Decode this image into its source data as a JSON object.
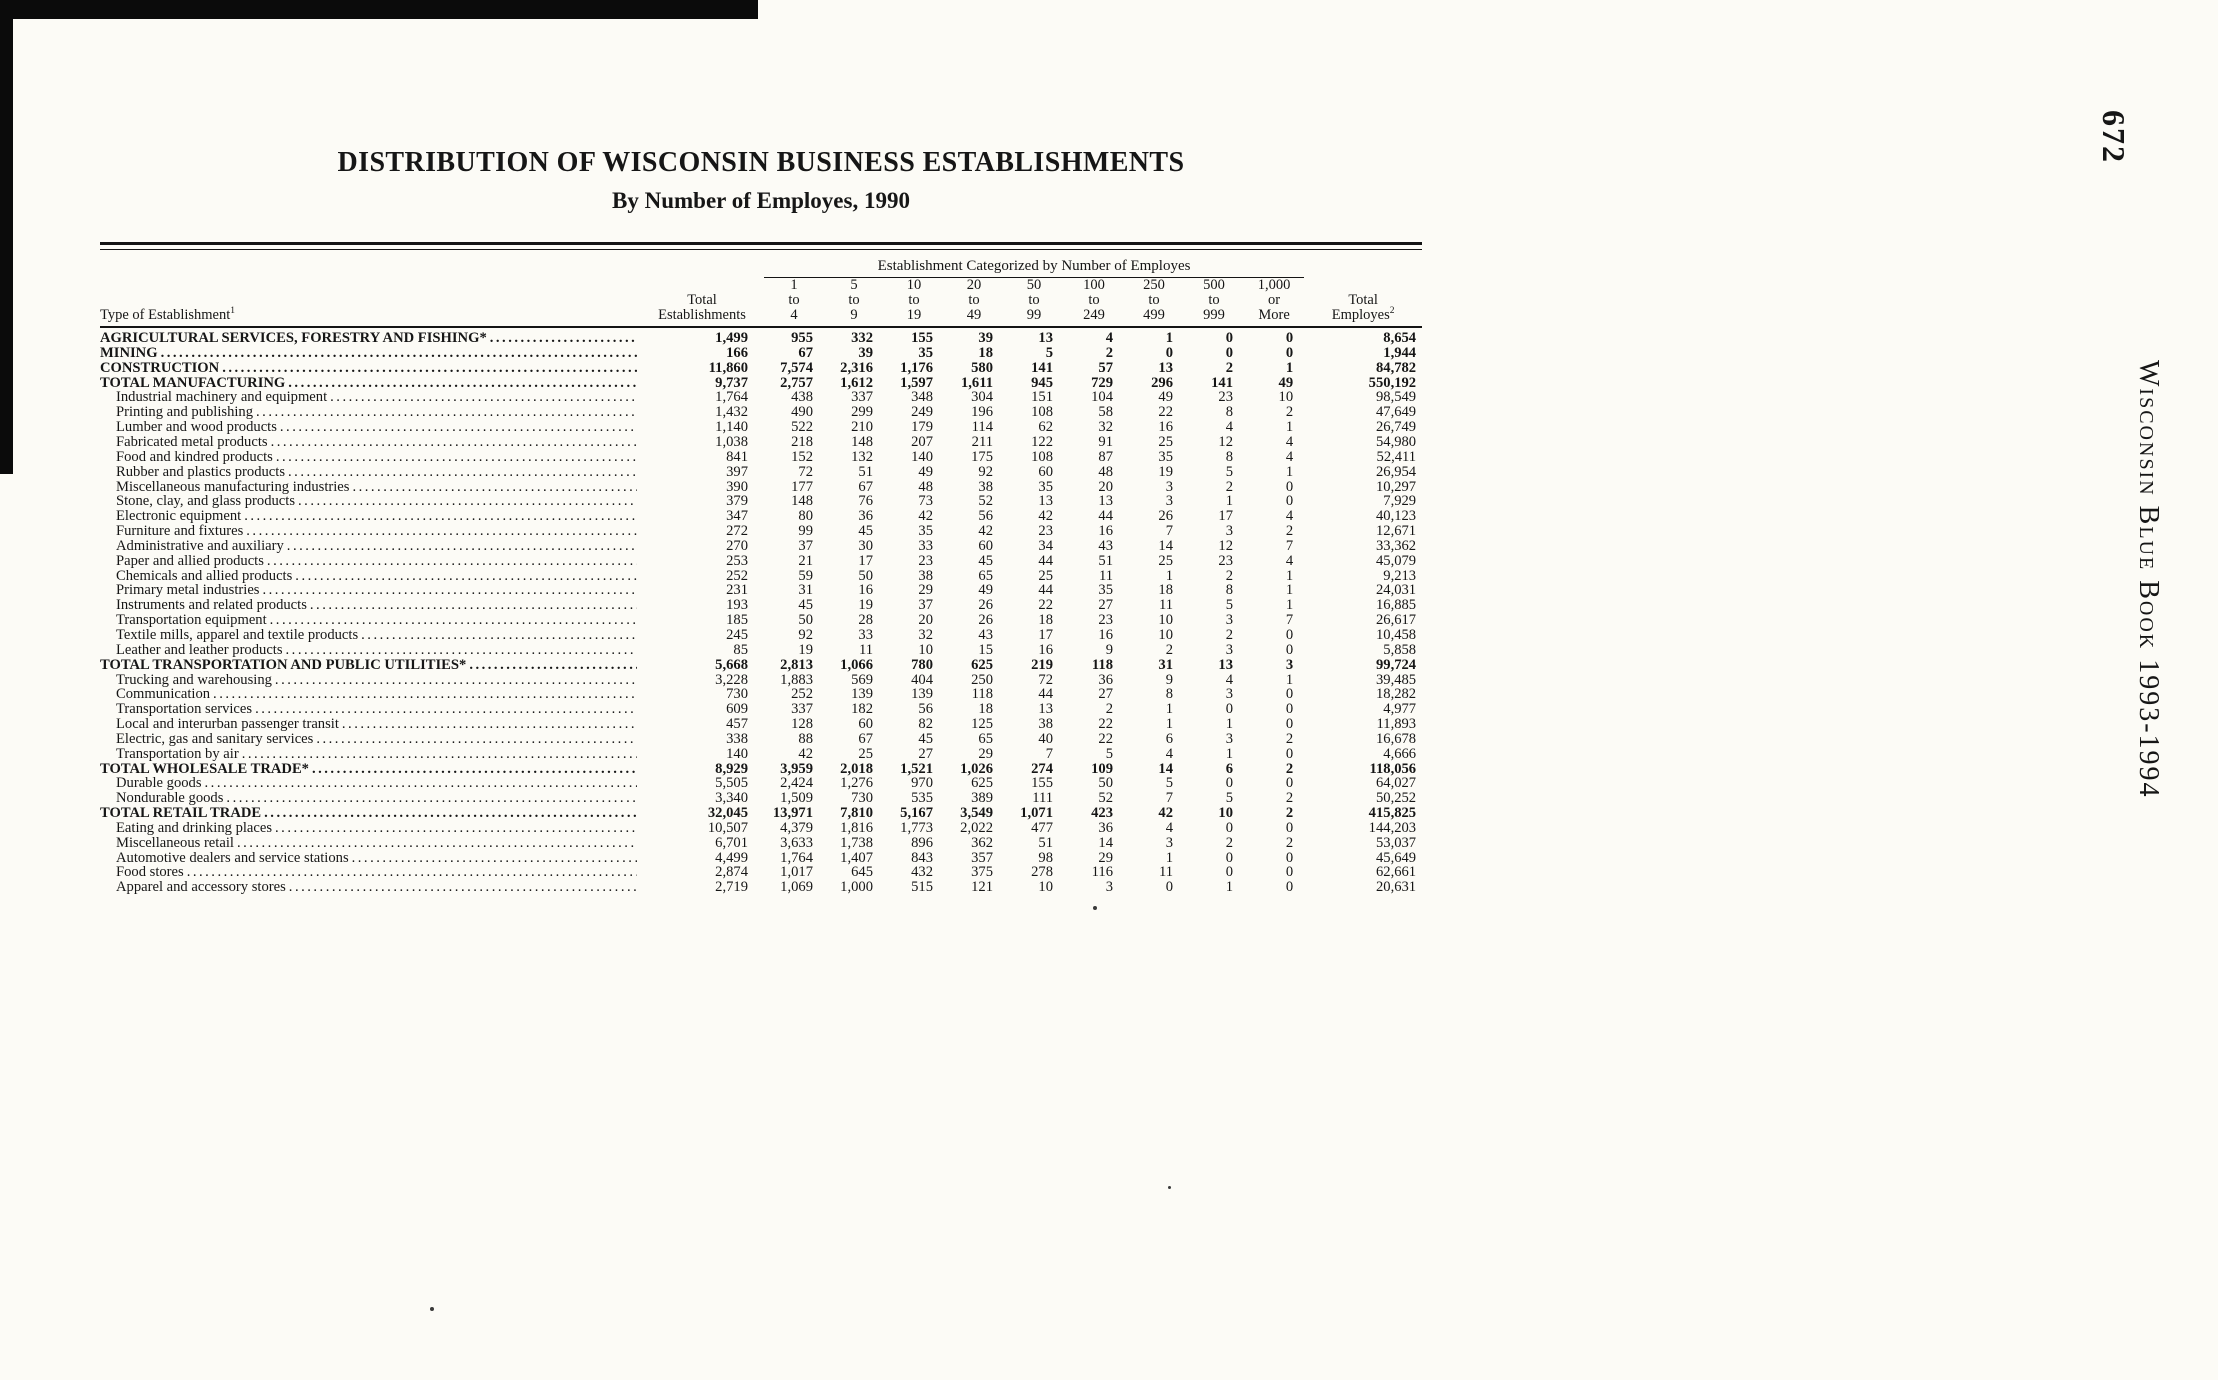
{
  "page": {
    "number": "672",
    "book_label": "Wisconsin Blue Book 1993-1994"
  },
  "header": {
    "title": "DISTRIBUTION OF WISCONSIN BUSINESS ESTABLISHMENTS",
    "subtitle": "By Number of Employes, 1990"
  },
  "table": {
    "group_header": "Establishment Categorized by Number of Employes",
    "type_column": {
      "label": "Type of Establishment",
      "footnote": "1"
    },
    "total_establishments_column": [
      "Total",
      "Establishments"
    ],
    "size_columns": [
      [
        "1",
        "to",
        "4"
      ],
      [
        "5",
        "to",
        "9"
      ],
      [
        "10",
        "to",
        "19"
      ],
      [
        "20",
        "to",
        "49"
      ],
      [
        "50",
        "to",
        "99"
      ],
      [
        "100",
        "to",
        "249"
      ],
      [
        "250",
        "to",
        "499"
      ],
      [
        "500",
        "to",
        "999"
      ],
      [
        "1,000",
        "or",
        "More"
      ]
    ],
    "total_employes_column": {
      "lines": [
        "Total",
        "Employes"
      ],
      "footnote": "2"
    },
    "rows": [
      {
        "label": "AGRICULTURAL SERVICES, FORESTRY AND FISHING*",
        "style": "major",
        "values": [
          "1,499",
          "955",
          "332",
          "155",
          "39",
          "13",
          "4",
          "1",
          "0",
          "0",
          "8,654"
        ]
      },
      {
        "label": "MINING",
        "style": "major",
        "values": [
          "166",
          "67",
          "39",
          "35",
          "18",
          "5",
          "2",
          "0",
          "0",
          "0",
          "1,944"
        ]
      },
      {
        "label": "CONSTRUCTION",
        "style": "major",
        "values": [
          "11,860",
          "7,574",
          "2,316",
          "1,176",
          "580",
          "141",
          "57",
          "13",
          "2",
          "1",
          "84,782"
        ]
      },
      {
        "label": "TOTAL MANUFACTURING",
        "style": "major",
        "values": [
          "9,737",
          "2,757",
          "1,612",
          "1,597",
          "1,611",
          "945",
          "729",
          "296",
          "141",
          "49",
          "550,192"
        ]
      },
      {
        "label": "Industrial machinery and equipment",
        "style": "sub",
        "values": [
          "1,764",
          "438",
          "337",
          "348",
          "304",
          "151",
          "104",
          "49",
          "23",
          "10",
          "98,549"
        ]
      },
      {
        "label": "Printing and publishing",
        "style": "sub",
        "values": [
          "1,432",
          "490",
          "299",
          "249",
          "196",
          "108",
          "58",
          "22",
          "8",
          "2",
          "47,649"
        ]
      },
      {
        "label": "Lumber and wood products",
        "style": "sub",
        "values": [
          "1,140",
          "522",
          "210",
          "179",
          "114",
          "62",
          "32",
          "16",
          "4",
          "1",
          "26,749"
        ]
      },
      {
        "label": "Fabricated metal products",
        "style": "sub",
        "values": [
          "1,038",
          "218",
          "148",
          "207",
          "211",
          "122",
          "91",
          "25",
          "12",
          "4",
          "54,980"
        ]
      },
      {
        "label": "Food and kindred products",
        "style": "sub",
        "values": [
          "841",
          "152",
          "132",
          "140",
          "175",
          "108",
          "87",
          "35",
          "8",
          "4",
          "52,411"
        ]
      },
      {
        "label": "Rubber and plastics products",
        "style": "sub",
        "values": [
          "397",
          "72",
          "51",
          "49",
          "92",
          "60",
          "48",
          "19",
          "5",
          "1",
          "26,954"
        ]
      },
      {
        "label": "Miscellaneous manufacturing industries",
        "style": "sub",
        "values": [
          "390",
          "177",
          "67",
          "48",
          "38",
          "35",
          "20",
          "3",
          "2",
          "0",
          "10,297"
        ]
      },
      {
        "label": "Stone, clay, and glass products",
        "style": "sub",
        "values": [
          "379",
          "148",
          "76",
          "73",
          "52",
          "13",
          "13",
          "3",
          "1",
          "0",
          "7,929"
        ]
      },
      {
        "label": "Electronic equipment",
        "style": "sub",
        "values": [
          "347",
          "80",
          "36",
          "42",
          "56",
          "42",
          "44",
          "26",
          "17",
          "4",
          "40,123"
        ]
      },
      {
        "label": "Furniture and fixtures",
        "style": "sub",
        "values": [
          "272",
          "99",
          "45",
          "35",
          "42",
          "23",
          "16",
          "7",
          "3",
          "2",
          "12,671"
        ]
      },
      {
        "label": "Administrative and auxiliary",
        "style": "sub",
        "values": [
          "270",
          "37",
          "30",
          "33",
          "60",
          "34",
          "43",
          "14",
          "12",
          "7",
          "33,362"
        ]
      },
      {
        "label": "Paper and allied products",
        "style": "sub",
        "values": [
          "253",
          "21",
          "17",
          "23",
          "45",
          "44",
          "51",
          "25",
          "23",
          "4",
          "45,079"
        ]
      },
      {
        "label": "Chemicals and allied products",
        "style": "sub",
        "values": [
          "252",
          "59",
          "50",
          "38",
          "65",
          "25",
          "11",
          "1",
          "2",
          "1",
          "9,213"
        ]
      },
      {
        "label": "Primary metal industries",
        "style": "sub",
        "values": [
          "231",
          "31",
          "16",
          "29",
          "49",
          "44",
          "35",
          "18",
          "8",
          "1",
          "24,031"
        ]
      },
      {
        "label": "Instruments and related products",
        "style": "sub",
        "values": [
          "193",
          "45",
          "19",
          "37",
          "26",
          "22",
          "27",
          "11",
          "5",
          "1",
          "16,885"
        ]
      },
      {
        "label": "Transportation equipment",
        "style": "sub",
        "values": [
          "185",
          "50",
          "28",
          "20",
          "26",
          "18",
          "23",
          "10",
          "3",
          "7",
          "26,617"
        ]
      },
      {
        "label": "Textile mills, apparel and textile products",
        "style": "sub",
        "values": [
          "245",
          "92",
          "33",
          "32",
          "43",
          "17",
          "16",
          "10",
          "2",
          "0",
          "10,458"
        ]
      },
      {
        "label": "Leather and leather products",
        "style": "sub",
        "values": [
          "85",
          "19",
          "11",
          "10",
          "15",
          "16",
          "9",
          "2",
          "3",
          "0",
          "5,858"
        ]
      },
      {
        "label": "TOTAL TRANSPORTATION AND PUBLIC UTILITIES*",
        "style": "major",
        "values": [
          "5,668",
          "2,813",
          "1,066",
          "780",
          "625",
          "219",
          "118",
          "31",
          "13",
          "3",
          "99,724"
        ]
      },
      {
        "label": "Trucking and warehousing",
        "style": "sub",
        "values": [
          "3,228",
          "1,883",
          "569",
          "404",
          "250",
          "72",
          "36",
          "9",
          "4",
          "1",
          "39,485"
        ]
      },
      {
        "label": "Communication",
        "style": "sub",
        "values": [
          "730",
          "252",
          "139",
          "139",
          "118",
          "44",
          "27",
          "8",
          "3",
          "0",
          "18,282"
        ]
      },
      {
        "label": "Transportation services",
        "style": "sub",
        "values": [
          "609",
          "337",
          "182",
          "56",
          "18",
          "13",
          "2",
          "1",
          "0",
          "0",
          "4,977"
        ]
      },
      {
        "label": "Local and interurban passenger transit",
        "style": "sub",
        "values": [
          "457",
          "128",
          "60",
          "82",
          "125",
          "38",
          "22",
          "1",
          "1",
          "0",
          "11,893"
        ]
      },
      {
        "label": "Electric, gas and sanitary services",
        "style": "sub",
        "values": [
          "338",
          "88",
          "67",
          "45",
          "65",
          "40",
          "22",
          "6",
          "3",
          "2",
          "16,678"
        ]
      },
      {
        "label": "Transportation by air",
        "style": "sub",
        "values": [
          "140",
          "42",
          "25",
          "27",
          "29",
          "7",
          "5",
          "4",
          "1",
          "0",
          "4,666"
        ]
      },
      {
        "label": "TOTAL WHOLESALE TRADE*",
        "style": "major",
        "values": [
          "8,929",
          "3,959",
          "2,018",
          "1,521",
          "1,026",
          "274",
          "109",
          "14",
          "6",
          "2",
          "118,056"
        ]
      },
      {
        "label": "Durable goods",
        "style": "sub",
        "values": [
          "5,505",
          "2,424",
          "1,276",
          "970",
          "625",
          "155",
          "50",
          "5",
          "0",
          "0",
          "64,027"
        ]
      },
      {
        "label": "Nondurable goods",
        "style": "sub",
        "values": [
          "3,340",
          "1,509",
          "730",
          "535",
          "389",
          "111",
          "52",
          "7",
          "5",
          "2",
          "50,252"
        ]
      },
      {
        "label": "TOTAL RETAIL TRADE",
        "style": "major",
        "values": [
          "32,045",
          "13,971",
          "7,810",
          "5,167",
          "3,549",
          "1,071",
          "423",
          "42",
          "10",
          "2",
          "415,825"
        ]
      },
      {
        "label": "Eating and drinking places",
        "style": "sub",
        "values": [
          "10,507",
          "4,379",
          "1,816",
          "1,773",
          "2,022",
          "477",
          "36",
          "4",
          "0",
          "0",
          "144,203"
        ]
      },
      {
        "label": "Miscellaneous retail",
        "style": "sub",
        "values": [
          "6,701",
          "3,633",
          "1,738",
          "896",
          "362",
          "51",
          "14",
          "3",
          "2",
          "2",
          "53,037"
        ]
      },
      {
        "label": "Automotive dealers and service stations",
        "style": "sub",
        "values": [
          "4,499",
          "1,764",
          "1,407",
          "843",
          "357",
          "98",
          "29",
          "1",
          "0",
          "0",
          "45,649"
        ]
      },
      {
        "label": "Food stores",
        "style": "sub",
        "values": [
          "2,874",
          "1,017",
          "645",
          "432",
          "375",
          "278",
          "116",
          "11",
          "0",
          "0",
          "62,661"
        ]
      },
      {
        "label": "Apparel and accessory stores",
        "style": "sub",
        "values": [
          "2,719",
          "1,069",
          "1,000",
          "515",
          "121",
          "10",
          "3",
          "0",
          "1",
          "0",
          "20,631"
        ]
      }
    ]
  }
}
